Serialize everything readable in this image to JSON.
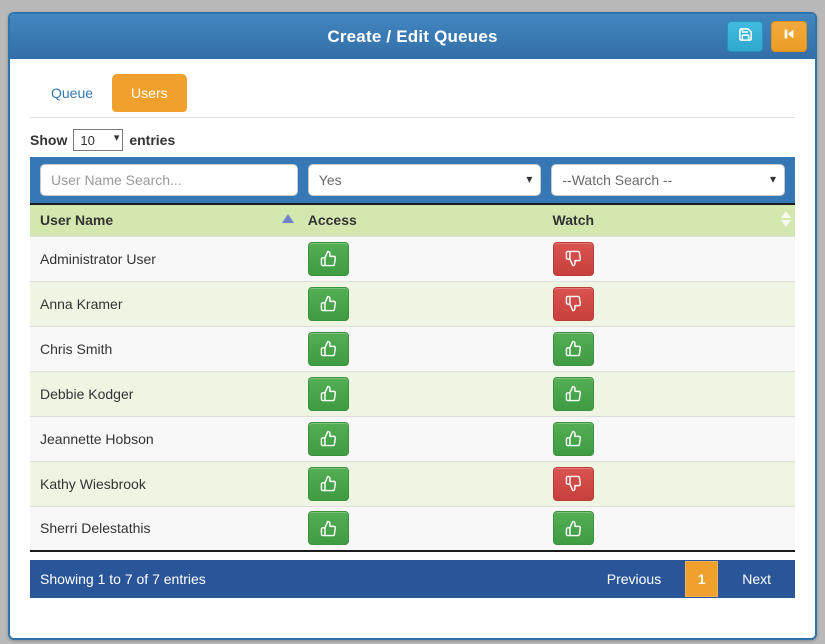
{
  "window": {
    "title": "Create / Edit Queues"
  },
  "header": {
    "buttons": [
      {
        "name": "save",
        "icon": "save-icon"
      },
      {
        "name": "back",
        "icon": "step-backward-icon"
      }
    ]
  },
  "tabs": [
    {
      "label": "Queue",
      "active": false
    },
    {
      "label": "Users",
      "active": true
    }
  ],
  "length_menu": {
    "show_label": "Show",
    "selected": "10",
    "entries_label": "entries"
  },
  "filters": {
    "user_name_placeholder": "User Name Search...",
    "access_selected": "Yes",
    "watch_selected": "--Watch Search --"
  },
  "table": {
    "columns": [
      {
        "label": "User Name",
        "sort": "asc"
      },
      {
        "label": "Access",
        "sort": null
      },
      {
        "label": "Watch",
        "sort": "both"
      }
    ],
    "rows": [
      {
        "name": "Administrator User",
        "access": "up",
        "watch": "down"
      },
      {
        "name": "Anna Kramer",
        "access": "up",
        "watch": "down"
      },
      {
        "name": "Chris Smith",
        "access": "up",
        "watch": "up"
      },
      {
        "name": "Debbie Kodger",
        "access": "up",
        "watch": "up"
      },
      {
        "name": "Jeannette Hobson",
        "access": "up",
        "watch": "up"
      },
      {
        "name": "Kathy Wiesbrook",
        "access": "up",
        "watch": "down"
      },
      {
        "name": "Sherri Delestathis",
        "access": "up",
        "watch": "up"
      }
    ]
  },
  "footer": {
    "info": "Showing 1 to 7 of 7 entries",
    "previous_label": "Previous",
    "current_page": "1",
    "next_label": "Next"
  },
  "colors": {
    "header_blue": "#3a7cb8",
    "filter_blue": "#3578b5",
    "footer_blue": "#2a5699",
    "thead_green": "#d3e8af",
    "stripe_green": "#eef6e3",
    "accent_orange": "#f0a12d",
    "save_teal": "#35b1d4",
    "thumb_green": "#47a44b",
    "thumb_red": "#d0443f"
  }
}
